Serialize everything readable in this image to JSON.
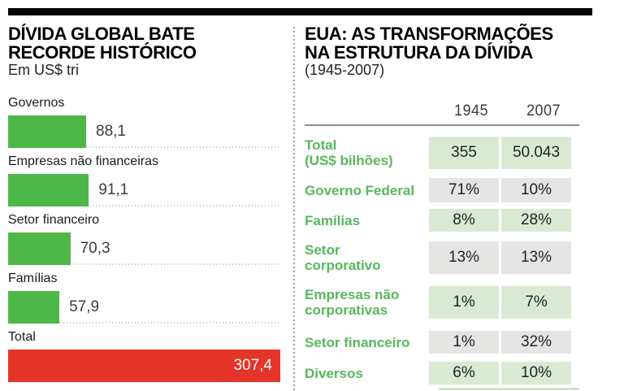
{
  "left_panel": {
    "title_line1": "DÍVIDA GLOBAL BATE",
    "title_line2": "RECORDE HISTÓRICO",
    "subtitle": "Em US$ tri",
    "bars": [
      {
        "label": "Governos",
        "value": 88.1,
        "value_label": "88,1",
        "color": "#4db848"
      },
      {
        "label": "Empresas não financeiras",
        "value": 91.1,
        "value_label": "91,1",
        "color": "#4db848"
      },
      {
        "label": "Setor financeiro",
        "value": 70.3,
        "value_label": "70,3",
        "color": "#4db848"
      },
      {
        "label": "Famílias",
        "value": 57.9,
        "value_label": "57,9",
        "color": "#4db848"
      },
      {
        "label": "Total",
        "value": 307.4,
        "value_label": "307,4",
        "color": "#e53529"
      }
    ]
  },
  "right_panel": {
    "title_line1": "EUA: AS TRANSFORMAÇÕES",
    "title_line2": "NA ESTRUTURA DA DÍVIDA",
    "subtitle": "(1945-2007)",
    "col_headers": [
      "1945",
      "2007"
    ],
    "rows": [
      {
        "lines": [
          "Total",
          "(US$ bilhões)"
        ],
        "values": [
          "355",
          "50.043"
        ],
        "bg": "green"
      },
      {
        "lines": [
          "Governo Federal"
        ],
        "values": [
          "71%",
          "10%"
        ],
        "bg": "gray"
      },
      {
        "lines": [
          "Famílias"
        ],
        "values": [
          "8%",
          "28%"
        ],
        "bg": "green"
      },
      {
        "lines": [
          "Setor",
          "corporativo"
        ],
        "values": [
          "13%",
          "13%"
        ],
        "bg": "gray"
      },
      {
        "lines": [
          "Empresas não",
          "corporativas"
        ],
        "values": [
          "1%",
          "7%"
        ],
        "bg": "green"
      },
      {
        "lines": [
          "Setor financeiro"
        ],
        "values": [
          "1%",
          "32%"
        ],
        "bg": "gray"
      },
      {
        "lines": [
          "Diversos"
        ],
        "values": [
          "6%",
          "10%"
        ],
        "bg": "green"
      }
    ]
  },
  "colors": {
    "bar_green": "#4db848",
    "bar_red": "#e53529",
    "label_green": "#57b85b",
    "cell_green_bg": "#d9ead3",
    "cell_gray_bg": "#e5e5e4"
  },
  "chart_data": [
    {
      "type": "bar",
      "orientation": "horizontal",
      "title": "DÍVIDA GLOBAL BATE RECORDE HISTÓRICO",
      "subtitle": "Em US$ tri",
      "categories": [
        "Governos",
        "Empresas não financeiras",
        "Setor financeiro",
        "Famílias",
        "Total"
      ],
      "values": [
        88.1,
        91.1,
        70.3,
        57.9,
        307.4
      ],
      "value_labels": [
        "88,1",
        "91,1",
        "70,3",
        "57,9",
        "307,4"
      ],
      "bar_colors": [
        "#4db848",
        "#4db848",
        "#4db848",
        "#4db848",
        "#e53529"
      ],
      "xlim": [
        0,
        307.4
      ],
      "grid": false,
      "legend": false
    },
    {
      "type": "table",
      "title": "EUA: AS TRANSFORMAÇÕES NA ESTRUTURA DA DÍVIDA",
      "subtitle": "(1945-2007)",
      "columns": [
        "1945",
        "2007"
      ],
      "rows": [
        {
          "label": "Total (US$ bilhões)",
          "1945": "355",
          "2007": "50.043"
        },
        {
          "label": "Governo Federal",
          "1945": "71%",
          "2007": "10%"
        },
        {
          "label": "Famílias",
          "1945": "8%",
          "2007": "28%"
        },
        {
          "label": "Setor corporativo",
          "1945": "13%",
          "2007": "13%"
        },
        {
          "label": "Empresas não corporativas",
          "1945": "1%",
          "2007": "7%"
        },
        {
          "label": "Setor financeiro",
          "1945": "1%",
          "2007": "32%"
        },
        {
          "label": "Diversos",
          "1945": "6%",
          "2007": "10%"
        }
      ]
    }
  ]
}
